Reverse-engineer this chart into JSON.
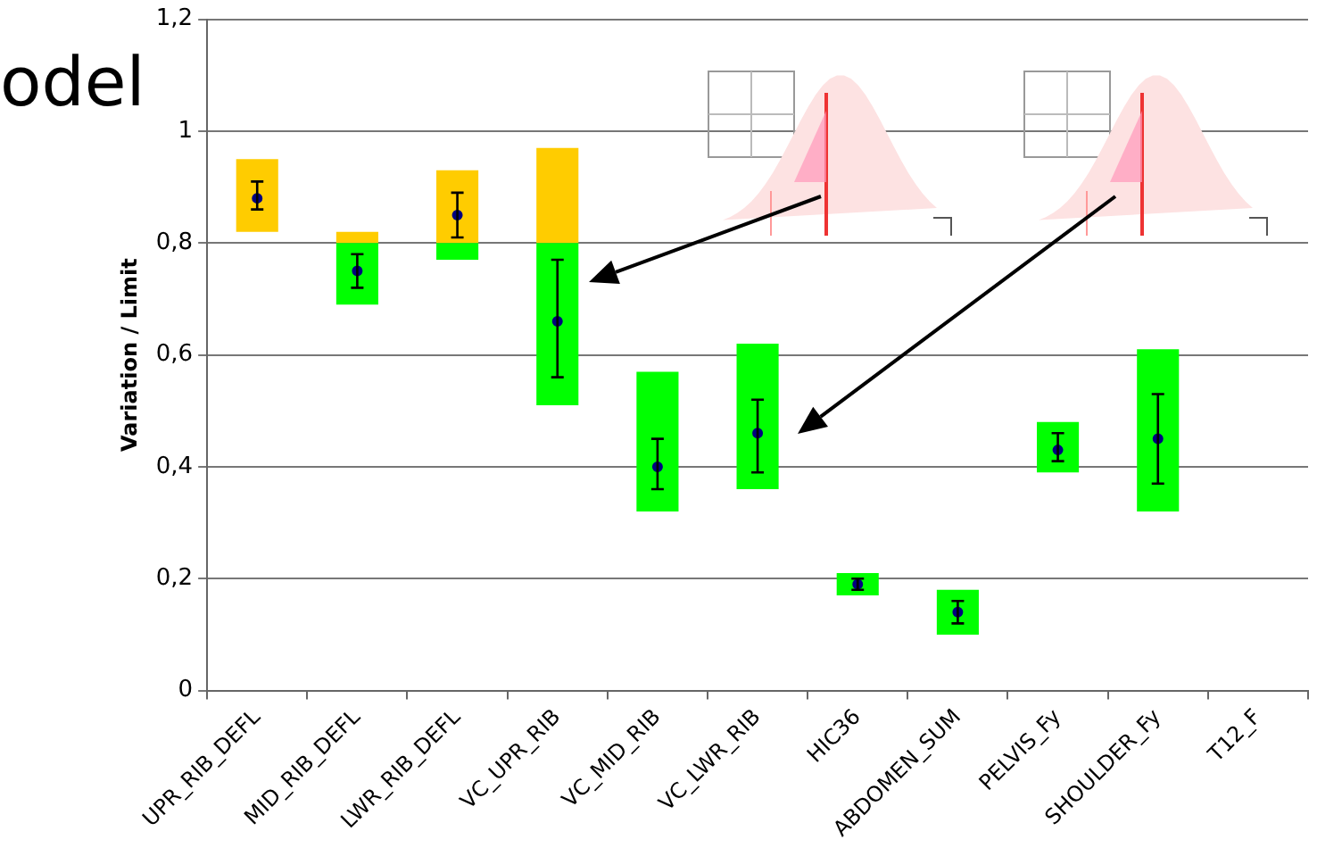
{
  "chart_data": {
    "type": "bar",
    "annotations": [
      "odel"
    ],
    "ylabel": "Variation / Limit",
    "categories": [
      "UPR_RIB_DEFL",
      "MID_RIB_DEFL",
      "LWR_RIB_DEFL",
      "VC_UPR_RIB",
      "VC_MID_RIB",
      "VC_LWR_RIB",
      "HIC36",
      "ABDOMEN_SUM",
      "PELVIS_Fy",
      "SHOULDER_Fy",
      "T12_F"
    ],
    "series": [
      {
        "color": "#00ff00",
        "base": [
          null,
          0.69,
          0.77,
          0.51,
          0.32,
          0.36,
          0.17,
          0.1,
          0.39,
          0.32,
          null
        ],
        "values": [
          null,
          0.11,
          0.03,
          0.29,
          0.25,
          0.26,
          0.04,
          0.08,
          0.09,
          0.29,
          null
        ]
      },
      {
        "color": "#ffcc00",
        "base": [
          0.82,
          0.8,
          0.8,
          0.8,
          null,
          null,
          null,
          null,
          null,
          null,
          null
        ],
        "values": [
          0.13,
          0.02,
          0.13,
          0.17,
          null,
          null,
          null,
          null,
          null,
          null,
          null
        ]
      },
      {
        "type": "scatter",
        "color": "#000080",
        "x": [
          "UPR_RIB_DEFL",
          "MID_RIB_DEFL",
          "LWR_RIB_DEFL",
          "VC_UPR_RIB",
          "VC_MID_RIB",
          "VC_LWR_RIB",
          "HIC36",
          "ABDOMEN_SUM",
          "PELVIS_Fy",
          "SHOULDER_Fy"
        ],
        "values": [
          0.88,
          0.75,
          0.85,
          0.66,
          0.4,
          0.46,
          0.19,
          0.14,
          0.43,
          0.45
        ],
        "errors": [
          [
            0.86,
            0.91
          ],
          [
            0.72,
            0.78
          ],
          [
            0.81,
            0.89
          ],
          [
            0.56,
            0.77
          ],
          [
            0.36,
            0.45
          ],
          [
            0.39,
            0.52
          ],
          [
            0.18,
            0.2
          ],
          [
            0.12,
            0.16
          ],
          [
            0.41,
            0.46
          ],
          [
            0.37,
            0.53
          ]
        ]
      }
    ],
    "ylim": [
      0,
      1.2
    ],
    "yticks": [
      0,
      {
        "value": 0.2,
        "label": "0,2"
      },
      {
        "value": 0.4,
        "label": "0,4"
      },
      {
        "value": 0.6,
        "label": "0,6"
      },
      {
        "value": 0.8,
        "label": "0,8"
      },
      1,
      {
        "value": 1.2,
        "label": "1,2"
      }
    ],
    "grid": "y",
    "legend": false,
    "marker": "circle"
  }
}
